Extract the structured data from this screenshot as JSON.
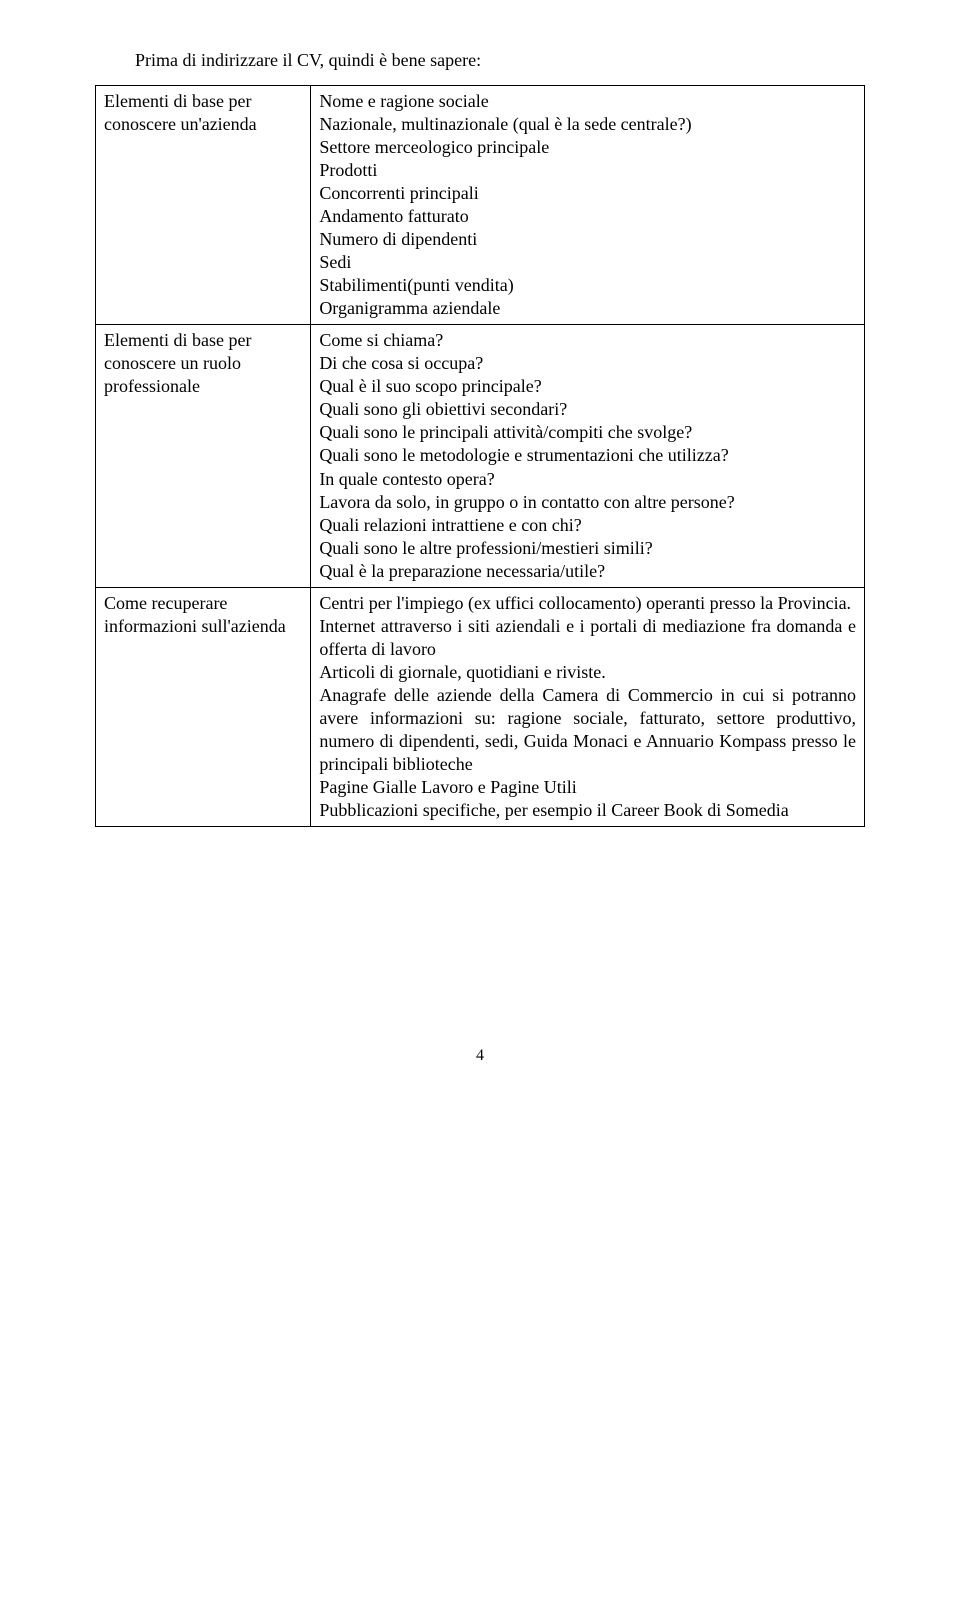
{
  "intro": "Prima di indirizzare il CV, quindi è bene sapere:",
  "rows": [
    {
      "left": "Elementi di base per conoscere un'azienda",
      "right": "Nome e ragione sociale\nNazionale, multinazionale (qual è la sede centrale?)\nSettore merceologico principale\nProdotti\nConcorrenti principali\nAndamento fatturato\nNumero di dipendenti\nSedi\nStabilimenti(punti vendita)\nOrganigramma aziendale"
    },
    {
      "left": "Elementi di base per conoscere un ruolo professionale",
      "right": "Come si chiama?\nDi che cosa si occupa?\nQual è il suo scopo principale?\nQuali sono gli obiettivi secondari?\nQuali sono le principali attività/compiti che svolge?\nQuali sono le metodologie e strumentazioni che utilizza?\nIn quale contesto opera?\nLavora da solo, in gruppo o in contatto con altre persone?\nQuali relazioni intrattiene e con chi?\nQuali sono le altre professioni/mestieri simili?\nQual è la preparazione necessaria/utile?"
    },
    {
      "left": "Come recuperare informazioni sull'azienda",
      "right": "Centri per l'impiego (ex uffici collocamento) operanti presso la Provincia.\nInternet attraverso i siti aziendali e i portali di mediazione fra domanda e offerta di lavoro\nArticoli di giornale, quotidiani e riviste.\nAnagrafe delle aziende della Camera di Commercio in cui si potranno avere informazioni su: ragione sociale, fatturato, settore produttivo, numero di dipendenti, sedi, Guida Monaci e Annuario Kompass presso le principali biblioteche\nPagine Gialle Lavoro e Pagine Utili\nPubblicazioni specifiche, per esempio il Career Book di Somedia"
    }
  ],
  "page_number": "4"
}
